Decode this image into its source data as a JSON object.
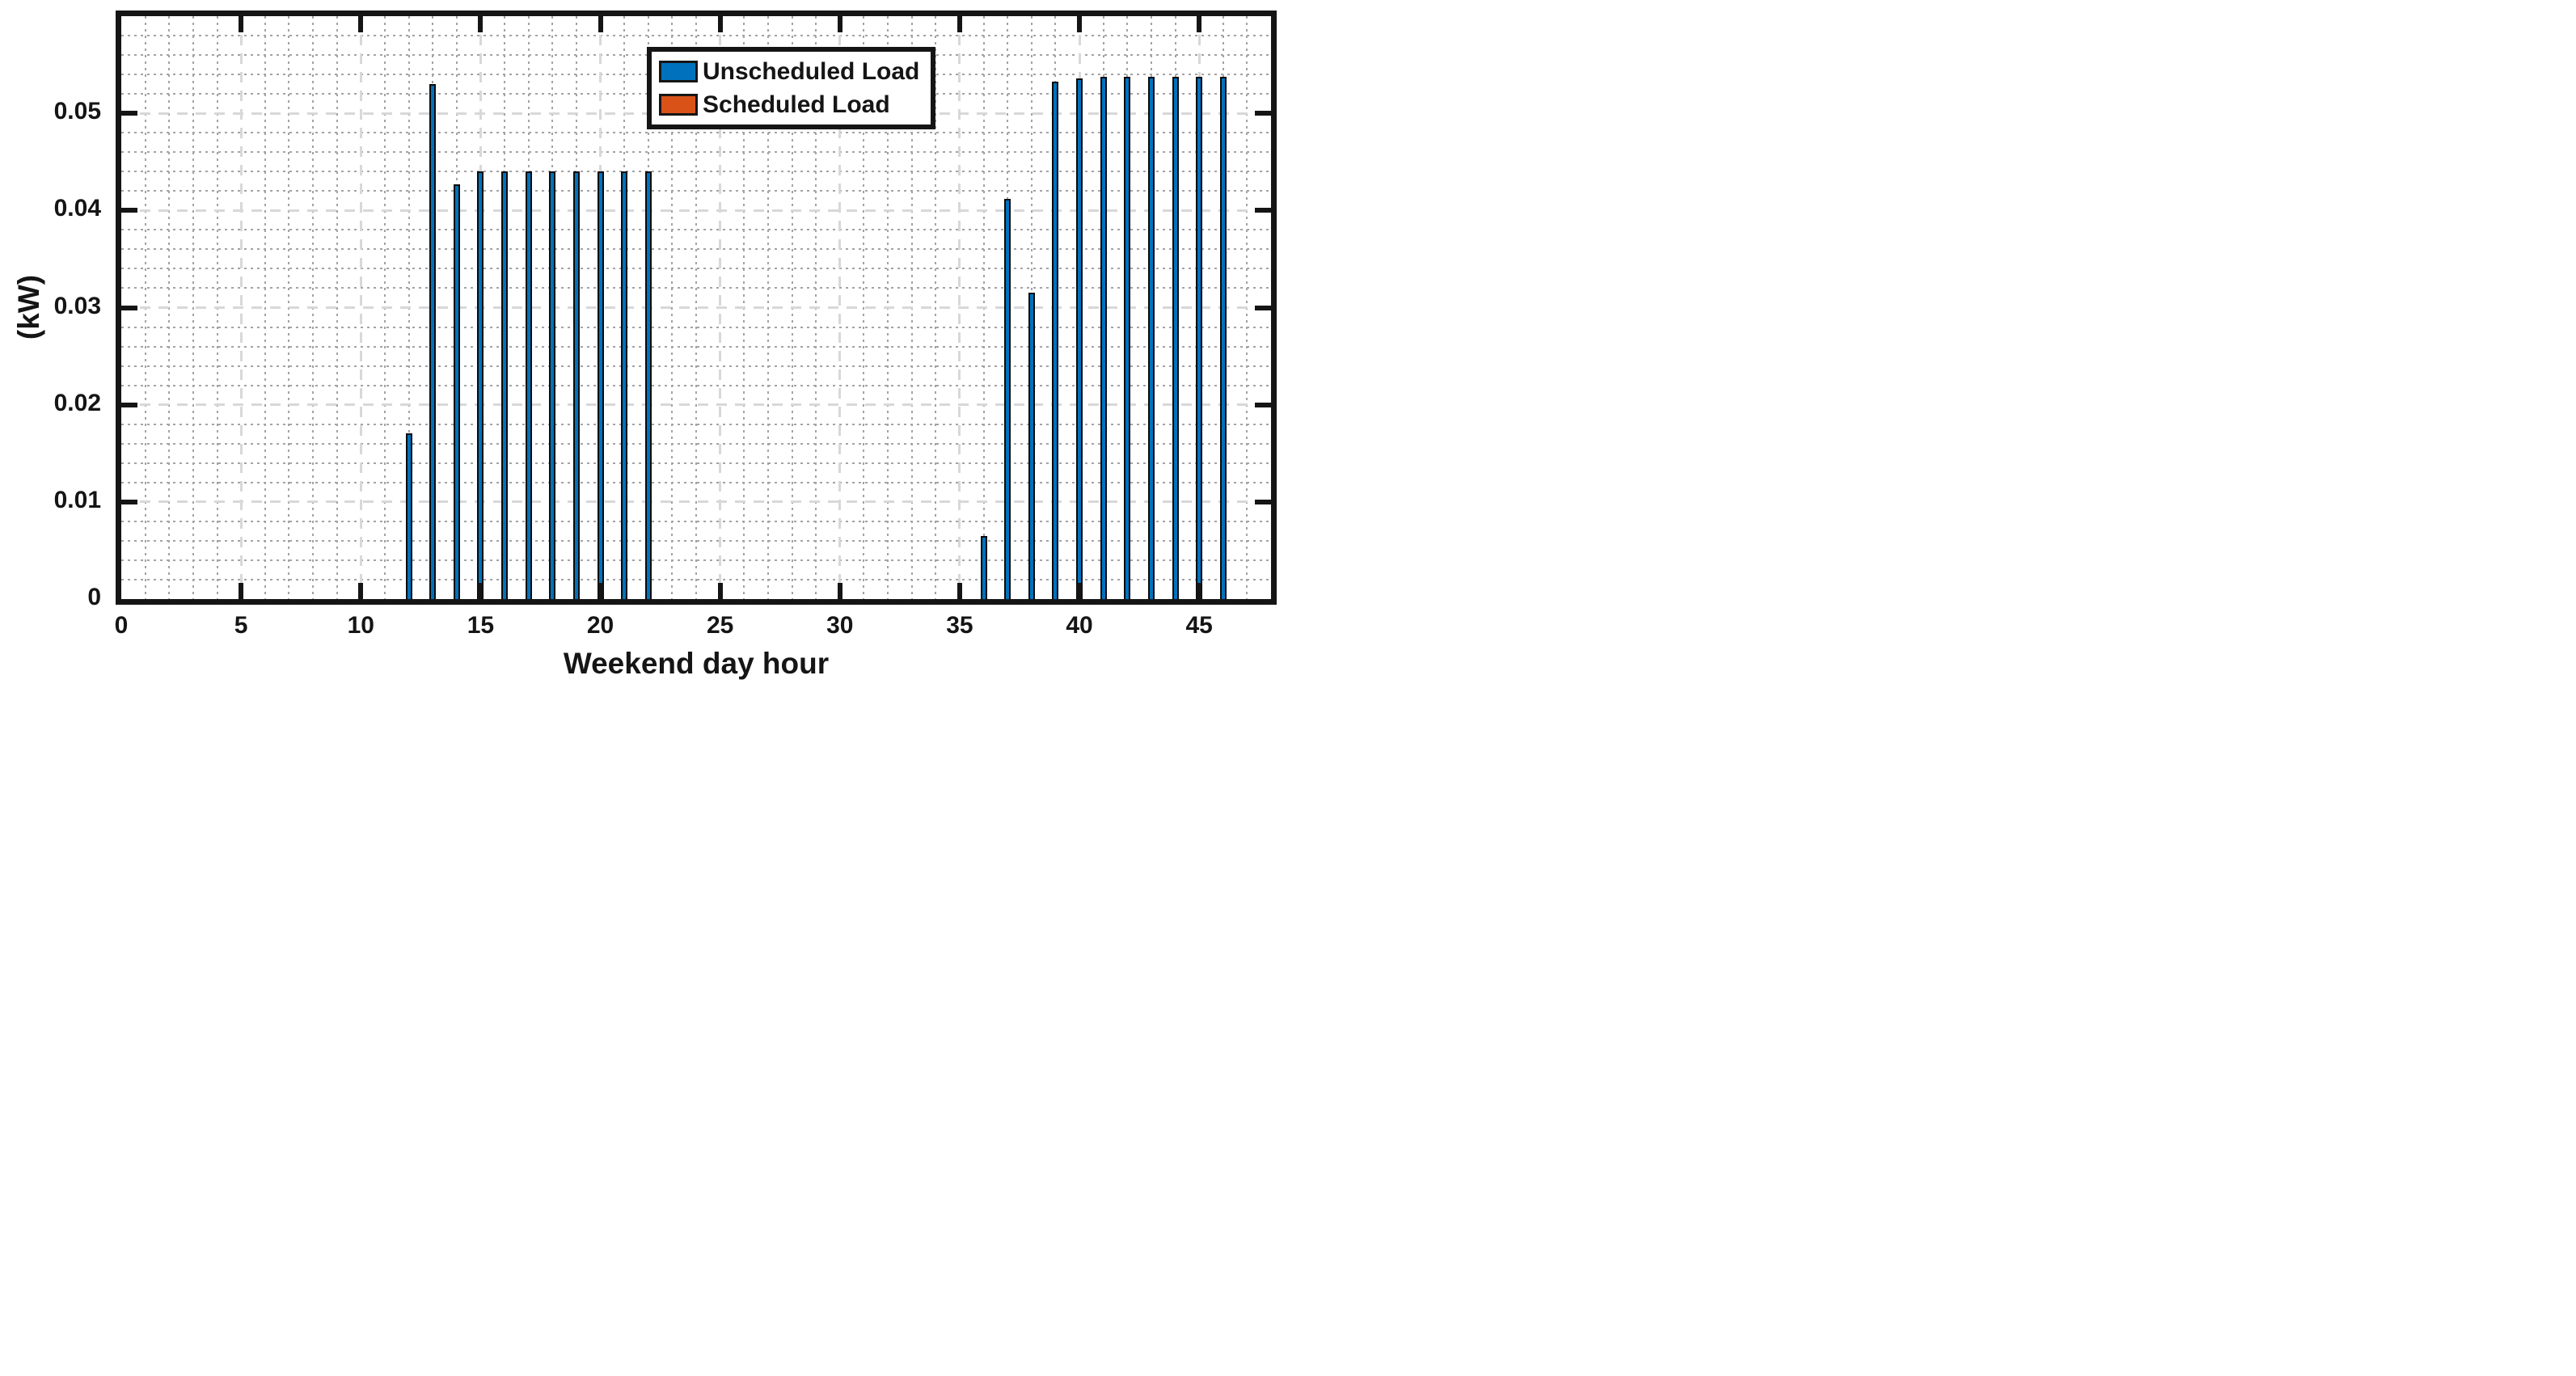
{
  "chart_data": {
    "type": "bar",
    "title": "",
    "xlabel": "Weekend day hour",
    "ylabel": "(kW)",
    "xlim": [
      0,
      48
    ],
    "ylim": [
      0,
      0.06
    ],
    "x_major_ticks": [
      0,
      5,
      10,
      15,
      20,
      25,
      30,
      35,
      40,
      45
    ],
    "x_minor_step": 1,
    "y_major_ticks": [
      0,
      0.01,
      0.02,
      0.03,
      0.04,
      0.05
    ],
    "y_tick_labels": [
      "0",
      "0.01",
      "0.02",
      "0.03",
      "0.04",
      "0.05"
    ],
    "y_minor_step": 0.002,
    "grid": "major-dashed and minor-dotted, both axes",
    "legend_position": "upper right inside plot",
    "bar_width_fraction": 0.27,
    "series": [
      {
        "name": "Unscheduled Load",
        "color": "#0072BD",
        "edge_color": "#0a0a0a",
        "points": [
          {
            "x": 12,
            "y": 0.0171
          },
          {
            "x": 13,
            "y": 0.053
          },
          {
            "x": 14,
            "y": 0.0427
          },
          {
            "x": 15,
            "y": 0.044
          },
          {
            "x": 16,
            "y": 0.044
          },
          {
            "x": 17,
            "y": 0.044
          },
          {
            "x": 18,
            "y": 0.044
          },
          {
            "x": 19,
            "y": 0.044
          },
          {
            "x": 20,
            "y": 0.044
          },
          {
            "x": 21,
            "y": 0.044
          },
          {
            "x": 22,
            "y": 0.044
          },
          {
            "x": 36,
            "y": 0.0065
          },
          {
            "x": 37,
            "y": 0.0412
          },
          {
            "x": 38,
            "y": 0.0315
          },
          {
            "x": 39,
            "y": 0.0533
          },
          {
            "x": 40,
            "y": 0.0536
          },
          {
            "x": 41,
            "y": 0.0538
          },
          {
            "x": 42,
            "y": 0.0538
          },
          {
            "x": 43,
            "y": 0.0538
          },
          {
            "x": 44,
            "y": 0.0538
          },
          {
            "x": 45,
            "y": 0.0538
          },
          {
            "x": 46,
            "y": 0.0538
          }
        ]
      },
      {
        "name": "Scheduled Load",
        "color": "#D95319",
        "edge_color": "#0a0a0a",
        "points": []
      }
    ]
  },
  "colors": {
    "background": "#ffffff",
    "axis": "#151515",
    "grid_major": "#d8d8d8",
    "grid_minor": "#a3a3a3",
    "text": "#151515",
    "legend_border": "#151515",
    "legend_bg": "#ffffff"
  }
}
